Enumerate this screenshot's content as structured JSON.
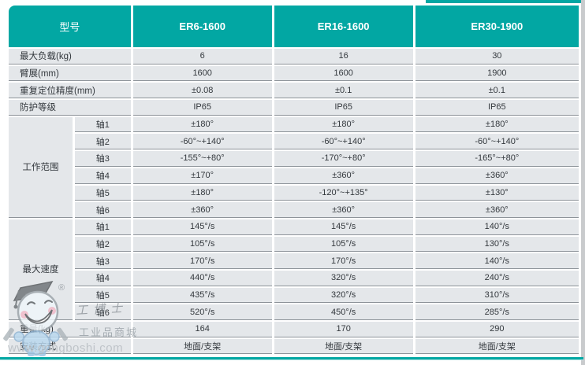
{
  "colors": {
    "teal": "#02a7a3",
    "cell_bg": "#e4e7ea",
    "grid_line": "#8d9399",
    "header_text": "#ffffff",
    "body_text": "#33383d"
  },
  "table": {
    "model_header": "型号",
    "models": [
      "ER6-1600",
      "ER16-1600",
      "ER30-1900"
    ],
    "top_rows": [
      {
        "label": "最大负载(kg)",
        "values": [
          "6",
          "16",
          "30"
        ]
      },
      {
        "label": "臂展(mm)",
        "values": [
          "1600",
          "1600",
          "1900"
        ]
      },
      {
        "label": "重复定位精度(mm)",
        "values": [
          "±0.08",
          "±0.1",
          "±0.1"
        ]
      },
      {
        "label": "防护等级",
        "values": [
          "IP65",
          "IP65",
          "IP65"
        ]
      }
    ],
    "sections": [
      {
        "label": "工作范围",
        "rows": [
          {
            "axis": "轴1",
            "values": [
              "±180°",
              "±180°",
              "±180°"
            ]
          },
          {
            "axis": "轴2",
            "values": [
              "-60°~+140°",
              "-60°~+140°",
              "-60°~+140°"
            ]
          },
          {
            "axis": "轴3",
            "values": [
              "-155°~+80°",
              "-170°~+80°",
              "-165°~+80°"
            ]
          },
          {
            "axis": "轴4",
            "values": [
              "±170°",
              "±360°",
              "±360°"
            ]
          },
          {
            "axis": "轴5",
            "values": [
              "±180°",
              "-120°~+135°",
              "±130°"
            ]
          },
          {
            "axis": "轴6",
            "values": [
              "±360°",
              "±360°",
              "±360°"
            ]
          }
        ]
      },
      {
        "label": "最大速度",
        "rows": [
          {
            "axis": "轴1",
            "values": [
              "145°/s",
              "145°/s",
              "140°/s"
            ]
          },
          {
            "axis": "轴2",
            "values": [
              "105°/s",
              "105°/s",
              "130°/s"
            ]
          },
          {
            "axis": "轴3",
            "values": [
              "170°/s",
              "170°/s",
              "140°/s"
            ]
          },
          {
            "axis": "轴4",
            "values": [
              "440°/s",
              "320°/s",
              "240°/s"
            ]
          },
          {
            "axis": "轴5",
            "values": [
              "435°/s",
              "320°/s",
              "310°/s"
            ]
          },
          {
            "axis": "轴6",
            "values": [
              "520°/s",
              "450°/s",
              "285°/s"
            ]
          }
        ]
      }
    ],
    "bottom_rows": [
      {
        "label": "重量(kg)",
        "values": [
          "164",
          "170",
          "290"
        ]
      },
      {
        "label": "安装方式",
        "values": [
          "地面/支架",
          "地面/支架",
          "地面/支架"
        ]
      }
    ]
  },
  "watermark": {
    "registered_mark": "®",
    "brand_script": "工博士",
    "brand_sub": "工业品商城",
    "url": "www.gongboshi.com"
  }
}
